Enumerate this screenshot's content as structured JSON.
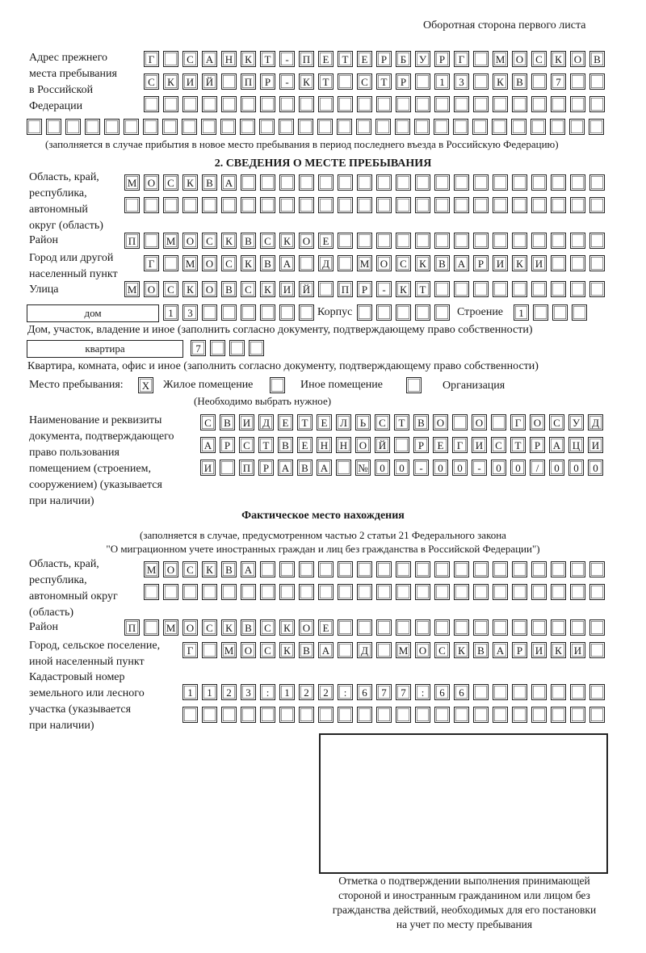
{
  "header": {
    "sheet_side": "Оборотная сторона первого листа"
  },
  "previous_address": {
    "label": [
      "Адрес прежнего",
      "места пребывания",
      "в Российской",
      "Федерации"
    ],
    "rows": [
      [
        "Г",
        "",
        "С",
        "А",
        "Н",
        "К",
        "Т",
        "-",
        "П",
        "Е",
        "Т",
        "Е",
        "Р",
        "Б",
        "У",
        "Р",
        "Г",
        "",
        "М",
        "О",
        "С",
        "К",
        "О",
        "В"
      ],
      [
        "С",
        "К",
        "И",
        "Й",
        "",
        "П",
        "Р",
        "-",
        "К",
        "Т",
        "",
        "С",
        "Т",
        "Р",
        "",
        "1",
        "3",
        "",
        "К",
        "В",
        "",
        "7",
        "",
        ""
      ],
      [
        "",
        "",
        "",
        "",
        "",
        "",
        "",
        "",
        "",
        "",
        "",
        "",
        "",
        "",
        "",
        "",
        "",
        "",
        "",
        "",
        "",
        "",
        "",
        ""
      ],
      [
        "",
        "",
        "",
        "",
        "",
        "",
        "",
        "",
        "",
        "",
        "",
        "",
        "",
        "",
        "",
        "",
        "",
        "",
        "",
        "",
        "",
        "",
        "",
        "",
        "",
        "",
        "",
        "",
        "",
        ""
      ]
    ],
    "note": "(заполняется в случае прибытия в новое место пребывания в период последнего въезда в Российскую Федерацию)"
  },
  "section2": {
    "title": "2. СВЕДЕНИЯ О МЕСТЕ ПРЕБЫВАНИЯ",
    "region_label": [
      "Область, край,",
      "республика,",
      "автономный",
      "округ (область)"
    ],
    "region_rows": [
      [
        "М",
        "О",
        "С",
        "К",
        "В",
        "А",
        "",
        "",
        "",
        "",
        "",
        "",
        "",
        "",
        "",
        "",
        "",
        "",
        "",
        "",
        "",
        "",
        "",
        "",
        ""
      ],
      [
        "",
        "",
        "",
        "",
        "",
        "",
        "",
        "",
        "",
        "",
        "",
        "",
        "",
        "",
        "",
        "",
        "",
        "",
        "",
        "",
        "",
        "",
        "",
        "",
        ""
      ]
    ],
    "district_label": "Район",
    "district_row": [
      "П",
      "",
      "М",
      "О",
      "С",
      "К",
      "В",
      "С",
      "К",
      "О",
      "Е",
      "",
      "",
      "",
      "",
      "",
      "",
      "",
      "",
      "",
      "",
      "",
      "",
      "",
      ""
    ],
    "city_label": [
      "Город или другой",
      "населенный пункт"
    ],
    "city_row": [
      "Г",
      "",
      "М",
      "О",
      "С",
      "К",
      "В",
      "А",
      "",
      "Д",
      "",
      "М",
      "О",
      "С",
      "К",
      "В",
      "А",
      "Р",
      "И",
      "К",
      "И",
      "",
      "",
      ""
    ],
    "street_label": "Улица",
    "street_row": [
      "М",
      "О",
      "С",
      "К",
      "О",
      "В",
      "С",
      "К",
      "И",
      "Й",
      "",
      "П",
      "Р",
      "-",
      "К",
      "Т",
      "",
      "",
      "",
      "",
      "",
      "",
      "",
      "",
      ""
    ],
    "house": {
      "type_value": "дом",
      "number_cells": [
        "1",
        "3",
        "",
        "",
        "",
        "",
        "",
        ""
      ],
      "korpus_label": "Корпус",
      "korpus_cells": [
        "",
        "",
        "",
        "",
        ""
      ],
      "stroenie_label": "Строение",
      "stroenie_cells": [
        "1",
        "",
        "",
        ""
      ],
      "caption": "Дом, участок, владение и иное (заполнить согласно документу, подтверждающему право собственности)"
    },
    "apartment": {
      "type_value": "квартира",
      "number_cells": [
        "7",
        "",
        "",
        ""
      ],
      "caption": "Квартира, комната, офис и иное (заполнить согласно документу, подтверждающему право собственности)"
    },
    "place_type": {
      "label": "Место пребывания:",
      "options": [
        {
          "label": "Жилое помещение",
          "mark": "X"
        },
        {
          "label": "Иное помещение",
          "mark": ""
        },
        {
          "label": "Организация",
          "mark": ""
        }
      ],
      "hint": "(Необходимо выбрать нужное)"
    },
    "document_label": [
      "Наименование и реквизиты",
      "документа, подтверждающего",
      "право пользования",
      "помещением (строением,",
      "сооружением) (указывается",
      "при наличии)"
    ],
    "document_rows": [
      [
        "С",
        "В",
        "И",
        "Д",
        "Е",
        "Т",
        "Е",
        "Л",
        "Ь",
        "С",
        "Т",
        "В",
        "О",
        "",
        "О",
        "",
        "Г",
        "О",
        "С",
        "У",
        "Д"
      ],
      [
        "А",
        "Р",
        "С",
        "Т",
        "В",
        "Е",
        "Н",
        "Н",
        "О",
        "Й",
        "",
        "Р",
        "Е",
        "Г",
        "И",
        "С",
        "Т",
        "Р",
        "А",
        "Ц",
        "И"
      ],
      [
        "И",
        "",
        "П",
        "Р",
        "А",
        "В",
        "А",
        "",
        "№",
        "0",
        "0",
        "-",
        "0",
        "0",
        "-",
        "0",
        "0",
        "/",
        "0",
        "0",
        "0"
      ]
    ]
  },
  "actual_location": {
    "title": "Фактическое место нахождения",
    "subtitle": [
      "(заполняется в случае, предусмотренном частью 2 статьи 21 Федерального закона",
      "\"О миграционном учете иностранных граждан и лиц без гражданства в Российской Федерации\")"
    ],
    "region_label": [
      "Область, край,",
      "республика,",
      "автономный округ",
      "(область)"
    ],
    "region_rows": [
      [
        "М",
        "О",
        "С",
        "К",
        "В",
        "А",
        "",
        "",
        "",
        "",
        "",
        "",
        "",
        "",
        "",
        "",
        "",
        "",
        "",
        "",
        "",
        "",
        "",
        ""
      ],
      [
        "",
        "",
        "",
        "",
        "",
        "",
        "",
        "",
        "",
        "",
        "",
        "",
        "",
        "",
        "",
        "",
        "",
        "",
        "",
        "",
        "",
        "",
        "",
        ""
      ]
    ],
    "district_label": "Район",
    "district_row": [
      "П",
      "",
      "М",
      "О",
      "С",
      "К",
      "В",
      "С",
      "К",
      "О",
      "Е",
      "",
      "",
      "",
      "",
      "",
      "",
      "",
      "",
      "",
      "",
      "",
      "",
      "",
      ""
    ],
    "city_label": [
      "Город, сельское поселение,",
      "иной населенный пункт"
    ],
    "city_row": [
      "Г",
      "",
      "М",
      "О",
      "С",
      "К",
      "В",
      "А",
      "",
      "Д",
      "",
      "М",
      "О",
      "С",
      "К",
      "В",
      "А",
      "Р",
      "И",
      "К",
      "И",
      ""
    ],
    "cadastral_label": [
      "Кадастровый номер",
      "земельного или лесного",
      "участка (указывается",
      "при наличии)"
    ],
    "cadastral_rows": [
      [
        "1",
        "1",
        "2",
        "3",
        ":",
        "1",
        "2",
        "2",
        ":",
        "6",
        "7",
        "7",
        ":",
        "6",
        "6",
        "",
        "",
        "",
        "",
        "",
        "",
        ""
      ],
      [
        "",
        "",
        "",
        "",
        "",
        "",
        "",
        "",
        "",
        "",
        "",
        "",
        "",
        "",
        "",
        "",
        "",
        "",
        "",
        "",
        "",
        ""
      ]
    ]
  },
  "stamp_box": {
    "caption": [
      "Отметка о подтверждении выполнения принимающей",
      "стороной и иностранным гражданином или лицом без",
      "гражданства действий, необходимых для его постановки",
      "на учет по месту пребывания"
    ]
  }
}
